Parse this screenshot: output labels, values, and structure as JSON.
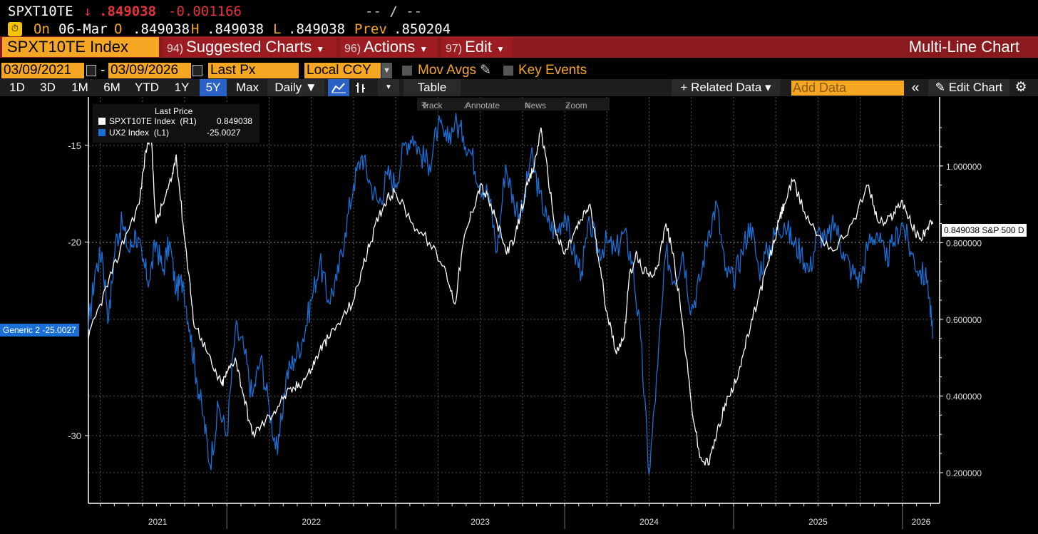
{
  "ticker_bar": {
    "ticker": "SPXT10TE",
    "arrow": "↓",
    "last": ".849038",
    "change": "-0.001166",
    "bidask": "-- / --"
  },
  "quote_bar": {
    "on_label": "On",
    "date": "06-Mar",
    "open_label": "O",
    "open": ".849038",
    "high_label": "H",
    "high": ".849038",
    "low_label": "L",
    "low": ".849038",
    "prev_label": "Prev",
    "prev": ".850204"
  },
  "menu_bar": {
    "security": "SPXT10TE Index",
    "suggested_num": "94)",
    "suggested": "Suggested Charts",
    "actions_num": "96)",
    "actions": "Actions",
    "edit_num": "97)",
    "edit": "Edit",
    "chart_title": "Multi-Line Chart"
  },
  "settings_bar": {
    "start_date": "03/09/2021",
    "dash": "-",
    "end_date": "03/09/2026",
    "field": "Last Px",
    "currency": "Local CCY",
    "mov_avgs": "Mov Avgs",
    "key_events": "Key Events"
  },
  "toolbar": {
    "periods": [
      "1D",
      "3D",
      "1M",
      "6M",
      "YTD",
      "1Y",
      "5Y",
      "Max"
    ],
    "selected_period": "5Y",
    "frequency": "Daily ▼",
    "table": "Table",
    "related_data": "+ Related Data ▾",
    "add_data_placeholder": "Add Data",
    "edit_chart": "Edit Chart"
  },
  "chart_tools": {
    "track": "Track",
    "annotate": "Annotate",
    "news": "News",
    "zoom": "Zoom"
  },
  "legend": {
    "title": "Last Price",
    "items": [
      {
        "name": "SPXT10TE Index  (R1)",
        "value": "0.849038",
        "color": "#ffffff"
      },
      {
        "name": "UX2 Index  (L1)",
        "value": "-25.0027",
        "color": "#1a6fd6"
      }
    ]
  },
  "tags": {
    "left": "Generic 2 -25.0027",
    "right": "0.849038 S&P 500 D"
  },
  "colors": {
    "orange": "#f5a623",
    "red_bar": "#8b1a1e",
    "blue_series": "#1a6fd6",
    "white_series": "#ffffff"
  },
  "chart_data": {
    "type": "line",
    "title": "Multi-Line Chart",
    "x_ticks": [
      "2021",
      "2022",
      "2023",
      "2024",
      "2025",
      "2026"
    ],
    "left_axis": {
      "ticks": [
        "-15",
        "-20",
        "-30"
      ],
      "tick_values": [
        -15,
        -20,
        -30
      ],
      "range": [
        -33.5,
        -12.5
      ]
    },
    "right_axis": {
      "ticks": [
        "1.000000",
        "0.800000",
        "0.600000",
        "0.400000",
        "0.200000"
      ],
      "tick_values": [
        1.0,
        0.8,
        0.6,
        0.4,
        0.2
      ],
      "range": [
        0.12,
        1.18
      ]
    },
    "x_range": [
      2021.18,
      2026.22
    ],
    "series": [
      {
        "name": "SPXT10TE Index (R1)",
        "axis": "right",
        "color": "#ffffff",
        "x": [
          2021.18,
          2021.25,
          2021.32,
          2021.4,
          2021.48,
          2021.52,
          2021.55,
          2021.58,
          2021.62,
          2021.67,
          2021.7,
          2021.74,
          2021.78,
          2021.8,
          2021.85,
          2021.92,
          2021.97,
          2022.0,
          2022.05,
          2022.1,
          2022.15,
          2022.2,
          2022.28,
          2022.34,
          2022.4,
          2022.45,
          2022.5,
          2022.55,
          2022.6,
          2022.68,
          2022.75,
          2022.8,
          2022.85,
          2022.9,
          2022.95,
          2023.0,
          2023.1,
          2023.2,
          2023.3,
          2023.35,
          2023.4,
          2023.45,
          2023.5,
          2023.55,
          2023.6,
          2023.65,
          2023.7,
          2023.74,
          2023.78,
          2023.82,
          2023.86,
          2023.9,
          2023.95,
          2024.0,
          2024.05,
          2024.1,
          2024.15,
          2024.2,
          2024.25,
          2024.3,
          2024.35,
          2024.38,
          2024.42,
          2024.45,
          2024.5,
          2024.55,
          2024.6,
          2024.65,
          2024.7,
          2024.75,
          2024.8,
          2024.85,
          2024.9,
          2024.95,
          2025.0,
          2025.05,
          2025.1,
          2025.15,
          2025.2,
          2025.24,
          2025.27,
          2025.3,
          2025.35,
          2025.42,
          2025.5,
          2025.6,
          2025.7,
          2025.8,
          2025.85,
          2025.9,
          2025.95,
          2026.0,
          2026.05,
          2026.1,
          2026.15,
          2026.18
        ],
        "y": [
          0.55,
          0.64,
          0.72,
          0.82,
          0.9,
          1.04,
          1.09,
          0.85,
          0.9,
          0.96,
          1.03,
          0.85,
          0.7,
          0.6,
          0.55,
          0.47,
          0.43,
          0.46,
          0.5,
          0.4,
          0.3,
          0.32,
          0.36,
          0.4,
          0.42,
          0.44,
          0.47,
          0.52,
          0.55,
          0.6,
          0.65,
          0.73,
          0.8,
          0.87,
          0.92,
          0.93,
          0.85,
          0.8,
          0.72,
          0.64,
          0.8,
          0.88,
          0.95,
          0.91,
          0.85,
          0.78,
          0.8,
          0.88,
          0.95,
          1.0,
          1.1,
          0.98,
          0.82,
          0.77,
          0.82,
          0.86,
          0.9,
          0.76,
          0.62,
          0.52,
          0.55,
          0.7,
          0.77,
          0.74,
          0.71,
          0.74,
          0.85,
          0.75,
          0.58,
          0.38,
          0.24,
          0.22,
          0.3,
          0.38,
          0.42,
          0.5,
          0.58,
          0.66,
          0.74,
          0.8,
          0.86,
          0.9,
          0.96,
          0.88,
          0.82,
          0.78,
          0.85,
          0.95,
          0.86,
          0.85,
          0.88,
          0.91,
          0.85,
          0.81,
          0.84,
          0.849
        ]
      },
      {
        "name": "UX2 Index (L1)",
        "axis": "left",
        "color": "#1a6fd6",
        "x": [
          2021.18,
          2021.22,
          2021.26,
          2021.3,
          2021.34,
          2021.38,
          2021.42,
          2021.46,
          2021.5,
          2021.54,
          2021.58,
          2021.62,
          2021.66,
          2021.7,
          2021.74,
          2021.78,
          2021.82,
          2021.86,
          2021.9,
          2021.95,
          2022.0,
          2022.05,
          2022.1,
          2022.15,
          2022.2,
          2022.25,
          2022.3,
          2022.35,
          2022.4,
          2022.45,
          2022.5,
          2022.55,
          2022.6,
          2022.65,
          2022.7,
          2022.75,
          2022.8,
          2022.85,
          2022.9,
          2022.95,
          2023.0,
          2023.05,
          2023.1,
          2023.15,
          2023.2,
          2023.25,
          2023.3,
          2023.35,
          2023.4,
          2023.45,
          2023.5,
          2023.55,
          2023.6,
          2023.65,
          2023.7,
          2023.75,
          2023.8,
          2023.85,
          2023.9,
          2023.95,
          2024.0,
          2024.05,
          2024.1,
          2024.15,
          2024.2,
          2024.25,
          2024.3,
          2024.35,
          2024.4,
          2024.45,
          2024.5,
          2024.55,
          2024.6,
          2024.65,
          2024.7,
          2024.75,
          2024.8,
          2024.85,
          2024.9,
          2024.95,
          2025.0,
          2025.05,
          2025.1,
          2025.15,
          2025.2,
          2025.25,
          2025.3,
          2025.35,
          2025.4,
          2025.45,
          2025.5,
          2025.55,
          2025.6,
          2025.65,
          2025.7,
          2025.75,
          2025.8,
          2025.85,
          2025.9,
          2025.95,
          2026.0,
          2026.05,
          2026.1,
          2026.15,
          2026.18
        ],
        "y": [
          -24.5,
          -21.5,
          -20.5,
          -24.0,
          -20.0,
          -19.0,
          -20.5,
          -19.5,
          -21.0,
          -22.0,
          -20.0,
          -21.5,
          -20.0,
          -22.5,
          -22.0,
          -24.5,
          -27.0,
          -29.0,
          -31.5,
          -28.5,
          -30.0,
          -24.5,
          -25.5,
          -28.0,
          -26.0,
          -28.5,
          -31.0,
          -27.0,
          -26.0,
          -25.0,
          -23.0,
          -21.0,
          -23.0,
          -22.0,
          -19.5,
          -17.0,
          -15.5,
          -17.0,
          -18.0,
          -16.5,
          -17.0,
          -15.0,
          -14.5,
          -15.5,
          -16.0,
          -14.0,
          -14.8,
          -13.8,
          -14.5,
          -15.5,
          -17.0,
          -17.5,
          -20.5,
          -16.0,
          -18.0,
          -18.5,
          -15.5,
          -17.5,
          -19.0,
          -19.5,
          -18.5,
          -20.5,
          -21.5,
          -19.0,
          -20.5,
          -20.0,
          -20.5,
          -19.5,
          -21.0,
          -25.0,
          -32.0,
          -26.5,
          -20.5,
          -22.0,
          -20.5,
          -23.5,
          -22.0,
          -19.5,
          -18.0,
          -21.5,
          -22.0,
          -20.5,
          -19.0,
          -21.5,
          -20.5,
          -19.5,
          -19.0,
          -20.0,
          -20.5,
          -21.5,
          -19.5,
          -20.0,
          -19.0,
          -20.5,
          -21.5,
          -22.0,
          -20.0,
          -19.5,
          -21.0,
          -20.0,
          -19.0,
          -20.5,
          -21.5,
          -22.0,
          -25.0
        ]
      }
    ]
  }
}
